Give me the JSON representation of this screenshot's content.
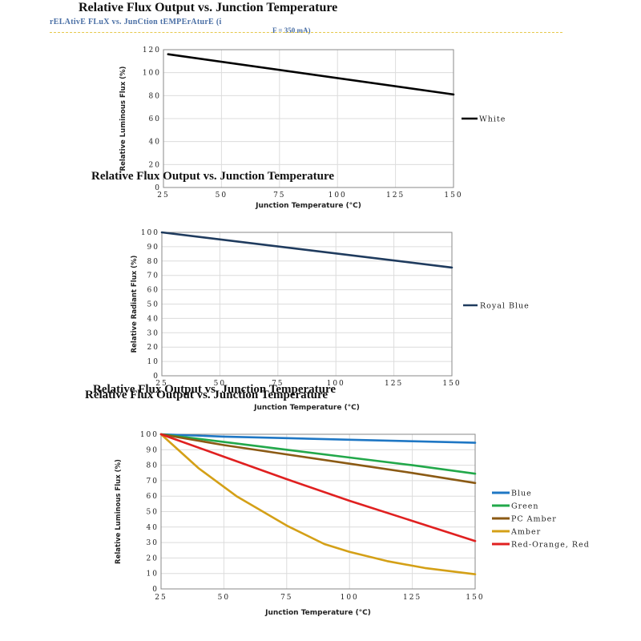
{
  "page": {
    "title1": "Relative Flux Output vs. Junction Temperature",
    "subtitle": "rELAtivE FLuX vs. JunCtion tEMPErAturE (i",
    "subtitle2": "F = 350 mA)",
    "title2": "Relative Flux Output vs. Junction Temperature",
    "title3a": "Relative Flux Output vs. Junction Temperature",
    "title3b": "Relative Flux Output vs. Junction Temperature"
  },
  "chart_data": [
    {
      "type": "line",
      "xlabel": "Junction Temperature (°C)",
      "ylabel": "Relative Luminous Flux (%)",
      "xlim": [
        25,
        150
      ],
      "ylim": [
        0,
        120
      ],
      "xticks": [
        25,
        50,
        75,
        100,
        125,
        150
      ],
      "yticks": [
        0,
        20,
        40,
        60,
        80,
        100,
        120
      ],
      "legend": "right",
      "grid": true,
      "series": [
        {
          "name": "White",
          "color": "#000000",
          "x": [
            27,
            150
          ],
          "y": [
            116,
            81
          ]
        }
      ]
    },
    {
      "type": "line",
      "xlabel": "Junction Temperature (°C)",
      "ylabel": "Relative Radiant Flux (%)",
      "xlim": [
        25,
        150
      ],
      "ylim": [
        0,
        100
      ],
      "xticks": [
        25,
        50,
        75,
        100,
        125,
        150
      ],
      "yticks": [
        0,
        10,
        20,
        30,
        40,
        50,
        60,
        70,
        80,
        90,
        100
      ],
      "legend": "right",
      "grid": true,
      "series": [
        {
          "name": "Royal Blue",
          "color": "#1f3b5e",
          "x": [
            25,
            150
          ],
          "y": [
            100,
            75.5
          ]
        }
      ]
    },
    {
      "type": "line",
      "xlabel": "Junction Temperature (°C)",
      "ylabel": "Relative Luminous Flux (%)",
      "xlim": [
        25,
        150
      ],
      "ylim": [
        0,
        100
      ],
      "xticks": [
        25,
        50,
        75,
        100,
        125,
        150
      ],
      "yticks": [
        0,
        10,
        20,
        30,
        40,
        50,
        60,
        70,
        80,
        90,
        100
      ],
      "legend": "right",
      "grid": true,
      "series": [
        {
          "name": "Blue",
          "color": "#1f77c4",
          "x": [
            25,
            50,
            75,
            100,
            125,
            150
          ],
          "y": [
            100,
            98.5,
            97.5,
            96.5,
            95.5,
            94.5
          ]
        },
        {
          "name": "Green",
          "color": "#22a84a",
          "x": [
            25,
            50,
            75,
            100,
            125,
            150
          ],
          "y": [
            100,
            95,
            90,
            85,
            80,
            74.5
          ]
        },
        {
          "name": "PC Amber",
          "color": "#8b5a14",
          "x": [
            25,
            50,
            75,
            100,
            125,
            150
          ],
          "y": [
            100,
            93,
            87,
            81,
            75,
            68.5
          ]
        },
        {
          "name": "Amber",
          "color": "#d4a017",
          "x": [
            25,
            40,
            55,
            75,
            90,
            100,
            115,
            130,
            150
          ],
          "y": [
            100,
            78,
            60,
            41,
            29,
            24,
            18,
            13.5,
            9.5
          ]
        },
        {
          "name": "Red-Orange, Red",
          "color": "#e02020",
          "x": [
            25,
            50,
            75,
            100,
            125,
            150
          ],
          "y": [
            100,
            85.5,
            71,
            57,
            44,
            31
          ]
        }
      ]
    }
  ]
}
